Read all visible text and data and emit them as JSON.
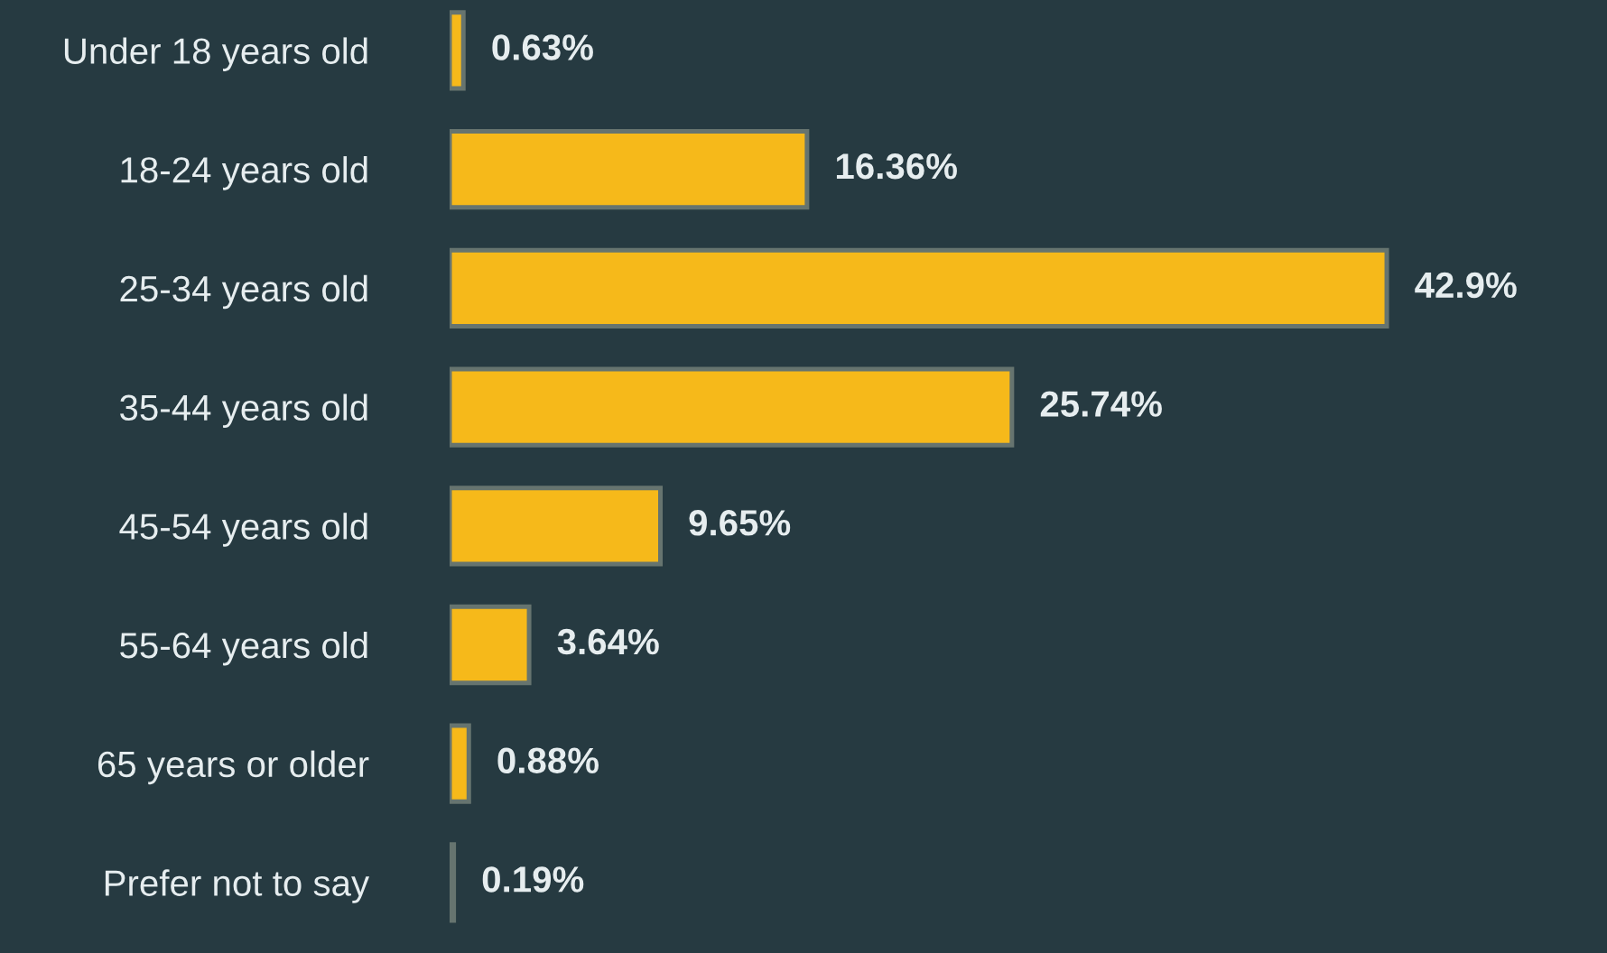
{
  "chart_data": {
    "type": "bar",
    "orientation": "horizontal",
    "categories": [
      "Under 18 years old",
      "18-24 years old",
      "25-34 years old",
      "35-44 years old",
      "45-54 years old",
      "55-64 years old",
      "65 years or older",
      "Prefer not to say"
    ],
    "values": [
      0.63,
      16.36,
      42.9,
      25.74,
      9.65,
      3.64,
      0.88,
      0.19
    ],
    "value_labels": [
      "0.63%",
      "16.36%",
      "42.9%",
      "25.74%",
      "9.65%",
      "3.64%",
      "0.88%",
      "0.19%"
    ],
    "color": "#f6b91a"
  }
}
